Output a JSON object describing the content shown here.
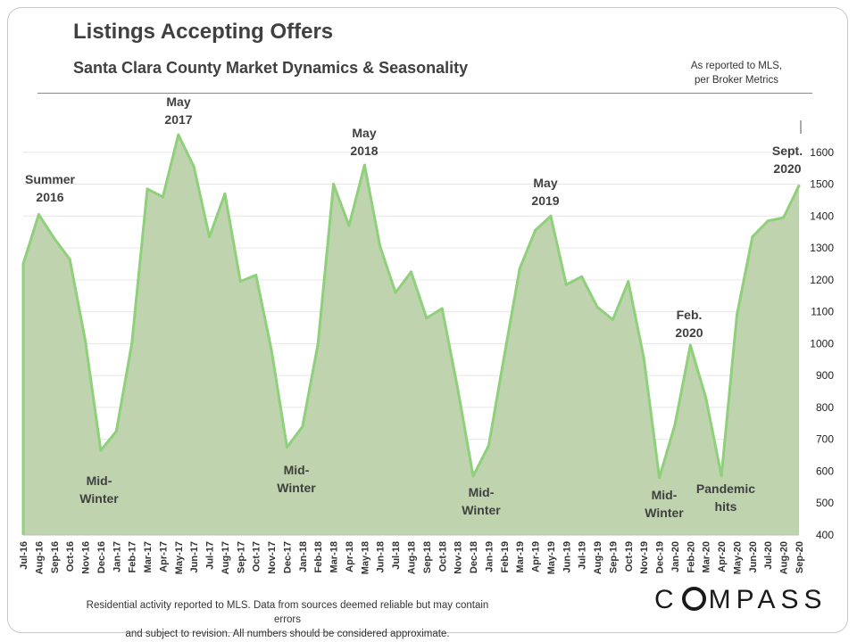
{
  "header": {
    "title": "Listings Accepting Offers",
    "subtitle": "Santa Clara County Market Dynamics & Seasonality",
    "source_note_line1": "As reported to MLS,",
    "source_note_line2": "per Broker Metrics"
  },
  "footer": {
    "line1": "Residential activity reported to MLS. Data from sources deemed reliable but may contain errors",
    "line2": "and subject to revision. All numbers should be considered approximate.",
    "logo_left": "C",
    "logo_right": "MPASS"
  },
  "colors": {
    "area_fill": "#bed3ae",
    "line": "#8fd07a",
    "text": "#404040"
  },
  "chart_data": {
    "type": "area",
    "title": "Listings Accepting Offers",
    "subtitle": "Santa Clara County Market Dynamics & Seasonality",
    "xlabel": "",
    "ylabel": "",
    "ylim": [
      400,
      1700
    ],
    "yticks": [
      400,
      500,
      600,
      700,
      800,
      900,
      1000,
      1100,
      1200,
      1300,
      1400,
      1500,
      1600
    ],
    "grid": true,
    "legend": "none",
    "y_axis_position": "right",
    "categories": [
      "Jul-16",
      "Aug-16",
      "Sep-16",
      "Oct-16",
      "Nov-16",
      "Dec-16",
      "Jan-17",
      "Feb-17",
      "Mar-17",
      "Apr-17",
      "May-17",
      "Jun-17",
      "Jul-17",
      "Aug-17",
      "Sep-17",
      "Oct-17",
      "Nov-17",
      "Dec-17",
      "Jan-18",
      "Feb-18",
      "Mar-18",
      "Apr-18",
      "May-18",
      "Jun-18",
      "Jul-18",
      "Aug-18",
      "Sep-18",
      "Oct-18",
      "Nov-18",
      "Dec-18",
      "Jan-19",
      "Feb-19",
      "Mar-19",
      "Apr-19",
      "May-19",
      "Jun-19",
      "Jul-19",
      "Aug-19",
      "Sep-19",
      "Oct-19",
      "Nov-19",
      "Dec-19",
      "Jan-20",
      "Feb-20",
      "Mar-20",
      "Apr-20",
      "May-20",
      "Jun-20",
      "Jul-20",
      "Aug-20",
      "Sep-20"
    ],
    "values": [
      1250,
      1405,
      1330,
      1265,
      1010,
      665,
      725,
      1000,
      1485,
      1460,
      1655,
      1555,
      1335,
      1470,
      1195,
      1215,
      980,
      675,
      740,
      1000,
      1500,
      1370,
      1560,
      1305,
      1160,
      1225,
      1080,
      1110,
      860,
      585,
      680,
      960,
      1235,
      1355,
      1400,
      1185,
      1210,
      1115,
      1075,
      1195,
      955,
      580,
      745,
      995,
      830,
      585,
      1090,
      1335,
      1385,
      1395,
      1495
    ],
    "annotations": [
      {
        "lines": [
          "Summer",
          "2016"
        ],
        "category": "Aug-16"
      },
      {
        "lines": [
          "May",
          "2017"
        ],
        "category": "May-17"
      },
      {
        "lines": [
          "May",
          "2018"
        ],
        "category": "May-18"
      },
      {
        "lines": [
          "May",
          "2019"
        ],
        "category": "May-19"
      },
      {
        "lines": [
          "Feb.",
          "2020"
        ],
        "category": "Feb-20"
      },
      {
        "lines": [
          "Sept.",
          "2020"
        ],
        "category": "Sep-20"
      },
      {
        "lines": [
          "Mid-",
          "Winter"
        ],
        "category": "Dec-16"
      },
      {
        "lines": [
          "Mid-",
          "Winter"
        ],
        "category": "Dec-17"
      },
      {
        "lines": [
          "Mid-",
          "Winter"
        ],
        "category": "Dec-18"
      },
      {
        "lines": [
          "Mid-",
          "Winter"
        ],
        "category": "Dec-19"
      },
      {
        "lines": [
          "Pandemic",
          "hits"
        ],
        "category": "Apr-20"
      }
    ]
  }
}
